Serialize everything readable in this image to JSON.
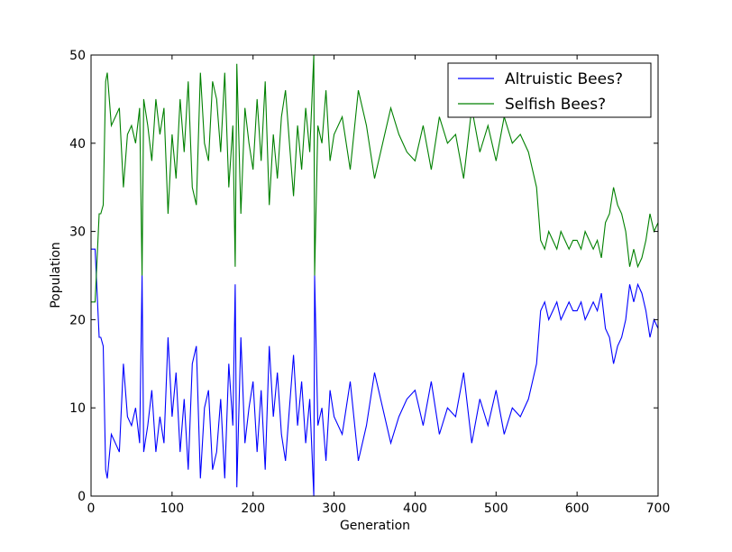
{
  "chart_data": {
    "type": "line",
    "xlabel": "Generation",
    "ylabel": "Population",
    "xlim": [
      0,
      700
    ],
    "ylim": [
      0,
      50
    ],
    "xticks": [
      "0",
      "100",
      "200",
      "300",
      "400",
      "500",
      "600",
      "700"
    ],
    "yticks": [
      "0",
      "10",
      "20",
      "30",
      "40",
      "50"
    ],
    "grid": false,
    "legend": "top-right",
    "legend_labels": [
      "Altruistic Bees?",
      "Selfish Bees?"
    ],
    "series": [
      {
        "name": "Altruistic Bees?",
        "color": "#0000ff",
        "x": [
          0,
          5,
          10,
          12,
          15,
          18,
          20,
          25,
          30,
          35,
          40,
          45,
          50,
          55,
          60,
          63,
          65,
          70,
          75,
          80,
          85,
          90,
          95,
          100,
          105,
          110,
          115,
          120,
          125,
          130,
          135,
          140,
          145,
          150,
          155,
          160,
          165,
          170,
          175,
          178,
          180,
          185,
          190,
          195,
          200,
          205,
          210,
          215,
          220,
          225,
          230,
          235,
          240,
          245,
          250,
          255,
          260,
          265,
          270,
          275,
          276,
          280,
          285,
          290,
          295,
          300,
          310,
          320,
          330,
          340,
          350,
          360,
          370,
          380,
          390,
          400,
          410,
          420,
          430,
          440,
          450,
          460,
          470,
          480,
          490,
          500,
          510,
          520,
          530,
          540,
          545,
          550,
          555,
          560,
          565,
          570,
          575,
          580,
          585,
          590,
          595,
          600,
          605,
          610,
          615,
          620,
          625,
          630,
          635,
          640,
          645,
          650,
          655,
          660,
          665,
          670,
          675,
          680,
          685,
          690,
          695,
          700
        ],
        "values": [
          28,
          28,
          18,
          18,
          17,
          3,
          2,
          7,
          6,
          5,
          15,
          9,
          8,
          10,
          6,
          25,
          5,
          8,
          12,
          5,
          9,
          6,
          18,
          9,
          14,
          5,
          11,
          3,
          15,
          17,
          2,
          10,
          12,
          3,
          5,
          11,
          2,
          15,
          8,
          24,
          1,
          18,
          6,
          10,
          13,
          5,
          12,
          3,
          17,
          9,
          14,
          7,
          4,
          10,
          16,
          8,
          13,
          6,
          11,
          0,
          25,
          8,
          10,
          4,
          12,
          9,
          7,
          13,
          4,
          8,
          14,
          10,
          6,
          9,
          11,
          12,
          8,
          13,
          7,
          10,
          9,
          14,
          6,
          11,
          8,
          12,
          7,
          10,
          9,
          11,
          13,
          15,
          21,
          22,
          20,
          21,
          22,
          20,
          21,
          22,
          21,
          21,
          22,
          20,
          21,
          22,
          21,
          23,
          19,
          18,
          15,
          17,
          18,
          20,
          24,
          22,
          24,
          23,
          21,
          18,
          20,
          19
        ]
      },
      {
        "name": "Selfish Bees?",
        "color": "#008000",
        "x": [
          0,
          5,
          10,
          12,
          15,
          18,
          20,
          25,
          30,
          35,
          40,
          45,
          50,
          55,
          60,
          63,
          65,
          70,
          75,
          80,
          85,
          90,
          95,
          100,
          105,
          110,
          115,
          120,
          125,
          130,
          135,
          140,
          145,
          150,
          155,
          160,
          165,
          170,
          175,
          178,
          180,
          185,
          190,
          195,
          200,
          205,
          210,
          215,
          220,
          225,
          230,
          235,
          240,
          245,
          250,
          255,
          260,
          265,
          270,
          275,
          276,
          280,
          285,
          290,
          295,
          300,
          310,
          320,
          330,
          340,
          350,
          360,
          370,
          380,
          390,
          400,
          410,
          420,
          430,
          440,
          450,
          460,
          470,
          480,
          490,
          500,
          510,
          520,
          530,
          540,
          545,
          550,
          555,
          560,
          565,
          570,
          575,
          580,
          585,
          590,
          595,
          600,
          605,
          610,
          615,
          620,
          625,
          630,
          635,
          640,
          645,
          650,
          655,
          660,
          665,
          670,
          675,
          680,
          685,
          690,
          695,
          700
        ],
        "values": [
          22,
          22,
          32,
          32,
          33,
          47,
          48,
          42,
          43,
          44,
          35,
          41,
          42,
          40,
          44,
          25,
          45,
          42,
          38,
          45,
          41,
          44,
          32,
          41,
          36,
          45,
          39,
          47,
          35,
          33,
          48,
          40,
          38,
          47,
          45,
          39,
          48,
          35,
          42,
          26,
          49,
          32,
          44,
          40,
          37,
          45,
          38,
          47,
          33,
          41,
          36,
          43,
          46,
          40,
          34,
          42,
          37,
          44,
          39,
          50,
          25,
          42,
          40,
          46,
          38,
          41,
          43,
          37,
          46,
          42,
          36,
          40,
          44,
          41,
          39,
          38,
          42,
          37,
          43,
          40,
          41,
          36,
          44,
          39,
          42,
          38,
          43,
          40,
          41,
          39,
          37,
          35,
          29,
          28,
          30,
          29,
          28,
          30,
          29,
          28,
          29,
          29,
          28,
          30,
          29,
          28,
          29,
          27,
          31,
          32,
          35,
          33,
          32,
          30,
          26,
          28,
          26,
          27,
          29,
          32,
          30,
          31
        ]
      }
    ]
  }
}
